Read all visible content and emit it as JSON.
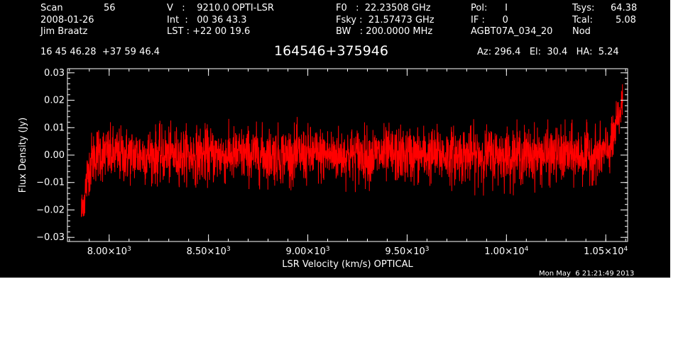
{
  "header": {
    "scan_label": "Scan",
    "scan_value": "56",
    "date": "2008-01-26",
    "observer": "Jim Braatz",
    "velocity_line": "V   :    9210.0 OPTI-LSR",
    "int_line": "Int  :   00 36 43.3",
    "lst_line": "LST : +22 00 19.6",
    "f0_line": "F0   :  22.23508 GHz",
    "fsky_line": "Fsky :  21.57473 GHz",
    "bw_line": "BW   : 200.0000 MHz",
    "pol_line": "Pol:      I",
    "if_line": "IF :      0",
    "project": "AGBT07A_034_20",
    "tsys_label": "Tsys:",
    "tsys_value": "64.38",
    "tcal_label": "Tcal:",
    "tcal_value": "5.08",
    "proc": "Nod",
    "coords": "16 45 46.28  +37 59 46.4",
    "source": "164546+375946",
    "az_el_ha": "Az: 296.4   El:  30.4   HA:  5.24"
  },
  "timestamp": "Mon May  6 21:21:49 2013",
  "colors": {
    "background": "#000000",
    "axes": "#ffffff",
    "trace": "#ff0000"
  },
  "chart_data": {
    "type": "line",
    "xlabel": "LSR Velocity (km/s) OPTICAL",
    "ylabel": "Flux Density (Jy)",
    "xlim": [
      7790,
      10610
    ],
    "ylim": [
      -0.0315,
      0.0315
    ],
    "grid": false,
    "xticks": [
      {
        "value": 8000,
        "mantissa": "8.00",
        "exp": "3"
      },
      {
        "value": 8500,
        "mantissa": "8.50",
        "exp": "3"
      },
      {
        "value": 9000,
        "mantissa": "9.00",
        "exp": "3"
      },
      {
        "value": 9500,
        "mantissa": "9.50",
        "exp": "3"
      },
      {
        "value": 10000,
        "mantissa": "1.00",
        "exp": "4"
      },
      {
        "value": 10500,
        "mantissa": "1.05",
        "exp": "4"
      }
    ],
    "yticks": [
      {
        "value": 0.03,
        "label": "0.03"
      },
      {
        "value": 0.02,
        "label": "0.02"
      },
      {
        "value": 0.01,
        "label": "0.01"
      },
      {
        "value": 0.0,
        "label": "0.00"
      },
      {
        "value": -0.01,
        "label": "−0.01"
      },
      {
        "value": -0.02,
        "label": "−0.02"
      },
      {
        "value": -0.03,
        "label": "−0.03"
      }
    ],
    "series": [
      {
        "x_start": 7860,
        "x_end": 10585,
        "n_points": 2700,
        "noise_rms": 0.005,
        "envelope": [
          {
            "x": 7860,
            "y": -0.021,
            "lo": -0.023,
            "hi": -0.016
          },
          {
            "x": 7875,
            "y": -0.016,
            "lo": -0.022,
            "hi": -0.008
          },
          {
            "x": 7890,
            "y": -0.008,
            "lo": -0.017,
            "hi": 0.002
          },
          {
            "x": 7910,
            "y": -0.002,
            "lo": -0.011,
            "hi": 0.008
          },
          {
            "x": 7940,
            "y": 0.001,
            "lo": -0.009,
            "hi": 0.011
          },
          {
            "x": 8000,
            "y": 0.0,
            "lo": -0.011,
            "hi": 0.012
          },
          {
            "x": 9000,
            "y": 0.0,
            "lo": -0.013,
            "hi": 0.014
          },
          {
            "x": 10000,
            "y": 0.0,
            "lo": -0.015,
            "hi": 0.013
          },
          {
            "x": 10450,
            "y": 0.0,
            "lo": -0.011,
            "hi": 0.013
          },
          {
            "x": 10500,
            "y": 0.001,
            "lo": -0.008,
            "hi": 0.012
          },
          {
            "x": 10530,
            "y": 0.004,
            "lo": -0.006,
            "hi": 0.014
          },
          {
            "x": 10550,
            "y": 0.009,
            "lo": -0.001,
            "hi": 0.019
          },
          {
            "x": 10570,
            "y": 0.015,
            "lo": 0.006,
            "hi": 0.024
          },
          {
            "x": 10585,
            "y": 0.02,
            "lo": 0.013,
            "hi": 0.026
          }
        ]
      }
    ]
  }
}
